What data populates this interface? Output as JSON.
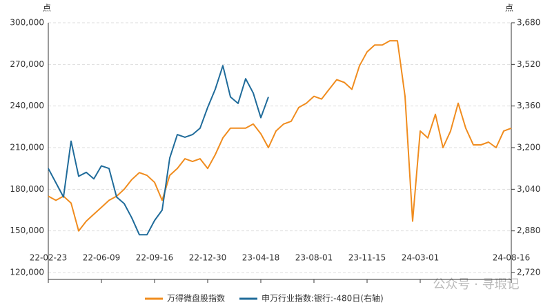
{
  "chart_data": {
    "type": "line",
    "y_unit": "点",
    "y2_unit": "点",
    "categories": [
      "22-02-23",
      null,
      null,
      null,
      null,
      null,
      null,
      "22-06-09",
      null,
      null,
      null,
      null,
      null,
      null,
      "22-09-16",
      null,
      null,
      null,
      null,
      null,
      null,
      "22-12-30",
      null,
      null,
      null,
      null,
      null,
      null,
      "23-04-18",
      null,
      null,
      null,
      null,
      null,
      null,
      "23-08-01",
      null,
      null,
      null,
      null,
      null,
      null,
      "23-11-15",
      null,
      null,
      null,
      null,
      null,
      null,
      "24-03-01",
      null,
      null,
      null,
      null,
      null,
      null,
      null,
      null,
      null,
      null,
      null,
      "24-08-16"
    ],
    "series": [
      {
        "name": "万得微盘股指数",
        "color": "#f08c1e",
        "values": [
          175000,
          172000,
          175000,
          170000,
          150000,
          157000,
          162000,
          167000,
          172000,
          175000,
          180000,
          187000,
          192000,
          190000,
          185000,
          172000,
          190000,
          195000,
          202000,
          200000,
          202000,
          195000,
          205000,
          217000,
          224000,
          224000,
          224000,
          227000,
          220000,
          210000,
          222000,
          227000,
          229000,
          239000,
          242000,
          247000,
          245000,
          252000,
          259000,
          257000,
          252000,
          269000,
          279000,
          284000,
          284000,
          287000,
          287000,
          247000,
          157000,
          222000,
          217000,
          234000,
          210000,
          222000,
          242000,
          224000,
          212000,
          212000,
          214000,
          210000,
          222000,
          224000
        ]
      },
      {
        "name": "申万行业指数:银行:-480日(右轴)",
        "color": "#1f6b9a",
        "axis": "y2",
        "values": [
          3120,
          3065,
          3010,
          3225,
          3090,
          3105,
          3080,
          3130,
          3120,
          3010,
          2985,
          2930,
          2865,
          2865,
          2920,
          2960,
          3160,
          3250,
          3240,
          3250,
          3275,
          3355,
          3425,
          3515,
          3395,
          3370,
          3465,
          3410,
          3315,
          3395,
          null,
          null,
          null,
          null,
          null,
          null,
          null,
          null,
          null,
          null,
          null,
          null,
          null,
          null,
          null,
          null,
          null,
          null,
          null,
          null,
          null,
          null,
          null,
          null,
          null,
          null,
          null,
          null,
          null,
          null,
          null,
          null
        ]
      }
    ],
    "ylim": [
      120000,
      300000
    ],
    "yticks": [
      {
        "value": 120000,
        "label": "120,000"
      },
      {
        "value": 150000,
        "label": "150,000"
      },
      {
        "value": 180000,
        "label": "180,000"
      },
      {
        "value": 210000,
        "label": "210,000"
      },
      {
        "value": 240000,
        "label": "240,000"
      },
      {
        "value": 270000,
        "label": "270,000"
      },
      {
        "value": 300000,
        "label": "300,000"
      }
    ],
    "y2lim": [
      2720,
      3680
    ],
    "y2ticks": [
      {
        "value": 2720,
        "label": "2,720"
      },
      {
        "value": 2880,
        "label": "2,880"
      },
      {
        "value": 3040,
        "label": "3,040"
      },
      {
        "value": 3200,
        "label": "3,200"
      },
      {
        "value": 3360,
        "label": "3,360"
      },
      {
        "value": 3520,
        "label": "3,520"
      },
      {
        "value": 3680,
        "label": "3,680"
      }
    ],
    "grid": true,
    "legend": "bottom",
    "watermark": "公众号 · 寻瑕记"
  }
}
